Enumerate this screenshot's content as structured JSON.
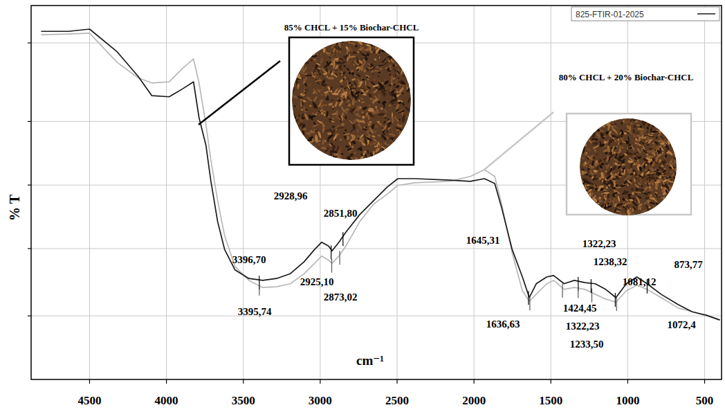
{
  "chart_data": {
    "type": "line",
    "title": "825-FTIR-01-2025",
    "x_label": "cm⁻¹",
    "y_label": "% T",
    "xlim": [
      4880,
      390
    ],
    "ylim": [
      0,
      100
    ],
    "xticks": [
      4500,
      4000,
      3500,
      3000,
      2500,
      2000,
      1500,
      1000,
      500
    ],
    "yticks": [
      17,
      35,
      52,
      69,
      90
    ],
    "grid": true,
    "tick_labels": "x",
    "x": [
      4815,
      4635,
      4500,
      4320,
      4185,
      4095,
      3982,
      3892,
      3824,
      3788,
      3743,
      3712,
      3667,
      3622,
      3554,
      3464,
      3374,
      3284,
      3194,
      3104,
      3036,
      2991,
      2946,
      2923,
      2878,
      2833,
      2743,
      2653,
      2563,
      2495,
      2383,
      2158,
      2023,
      1932,
      1865,
      1820,
      1752,
      1685,
      1640,
      1595,
      1527,
      1482,
      1414,
      1347,
      1279,
      1212,
      1144,
      1077,
      1009,
      941,
      874,
      784,
      671,
      581,
      491,
      401
    ],
    "series": [
      {
        "name": "85% CHCL + 15% Biochar-CHCL",
        "color": "#1a1a1a",
        "values": [
          93.1,
          93.1,
          93.7,
          87.6,
          81.1,
          75.9,
          75.6,
          77.8,
          79.6,
          70.0,
          62.6,
          53.3,
          42.2,
          34.8,
          29.3,
          27.0,
          26.5,
          27.0,
          28.3,
          31.5,
          34.8,
          36.7,
          35.7,
          34.4,
          36.7,
          39.4,
          44.1,
          47.8,
          51.5,
          53.7,
          53.7,
          53.3,
          53.0,
          53.7,
          52.4,
          45.9,
          34.8,
          27.4,
          21.9,
          25.6,
          27.4,
          27.8,
          25.6,
          26.5,
          25.9,
          25.6,
          24.1,
          21.9,
          25.6,
          27.4,
          25.6,
          22.8,
          20.0,
          18.1,
          17.2,
          15.9
        ]
      },
      {
        "name": "80% CHCL + 20% Biochar-CHCL",
        "color": "#b8b8b8",
        "values": [
          92.2,
          92.4,
          92.6,
          84.8,
          80.7,
          79.3,
          79.6,
          83.3,
          85.7,
          79.3,
          68.1,
          58.9,
          47.8,
          38.5,
          30.2,
          26.5,
          24.6,
          24.8,
          25.6,
          28.3,
          31.1,
          33.0,
          31.9,
          31.1,
          33.0,
          35.7,
          42.2,
          46.9,
          49.6,
          51.9,
          52.6,
          53.0,
          54.3,
          56.1,
          54.3,
          46.9,
          33.9,
          23.7,
          20.9,
          22.8,
          25.6,
          26.5,
          24.1,
          24.6,
          24.1,
          22.8,
          21.5,
          20.7,
          23.7,
          25.2,
          24.1,
          21.9,
          19.1,
          18.1,
          17.2,
          15.9
        ]
      }
    ],
    "annotations": [
      {
        "text": "3396,70",
        "x": 3396.7,
        "series": 0
      },
      {
        "text": "2928,96",
        "x": 2928.96,
        "series": 0
      },
      {
        "text": "2851,80",
        "x": 2851.8,
        "series": 0
      },
      {
        "text": "1645,31",
        "x": 1645.31,
        "series": 0
      },
      {
        "text": "1322,23",
        "x": 1322.23,
        "series": 0
      },
      {
        "text": "1238,32",
        "x": 1238.32,
        "series": 0
      },
      {
        "text": "1081,12",
        "x": 1081.12,
        "series": 0
      },
      {
        "text": "873,77",
        "x": 873.77,
        "series": 0
      },
      {
        "text": "3395,74",
        "x": 3395.74,
        "series": 1
      },
      {
        "text": "2925,10",
        "x": 2925.1,
        "series": 1
      },
      {
        "text": "2873,02",
        "x": 2873.02,
        "series": 1
      },
      {
        "text": "1636,63",
        "x": 1636.63,
        "series": 1
      },
      {
        "text": "1424,45",
        "x": 1424.45,
        "series": 1
      },
      {
        "text": "1322,23",
        "x": 1322.23,
        "series": 1
      },
      {
        "text": "1233,50",
        "x": 1233.5,
        "series": 1
      },
      {
        "text": "1072,4",
        "x": 1072.4,
        "series": 1
      }
    ]
  }
}
